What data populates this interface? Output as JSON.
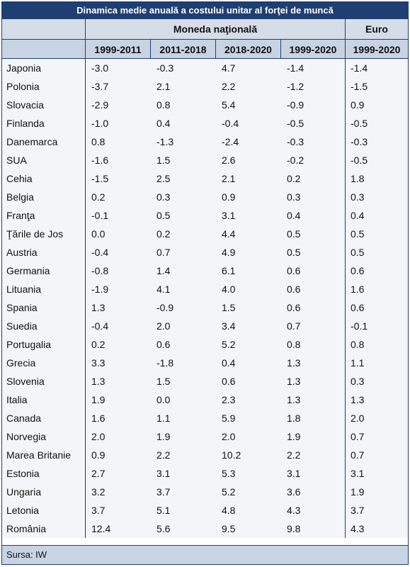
{
  "title": "Dinamica medie anuală a costului unitar al forţei de muncă",
  "header": {
    "group_national": "Moneda naţională",
    "group_euro": "Euro",
    "columns": [
      "1999-2011",
      "2011-2018",
      "2018-2020",
      "1999-2020",
      "1999-2020"
    ]
  },
  "rows": [
    {
      "country": "Japonia",
      "v": [
        "-3.0",
        "-0.3",
        "4.7",
        "-1.4",
        "-1.4"
      ]
    },
    {
      "country": "Polonia",
      "v": [
        "-3.7",
        "2.1",
        "2.2",
        "-1.2",
        "-1.5"
      ]
    },
    {
      "country": "Slovacia",
      "v": [
        "-2.9",
        "0.8",
        "5.4",
        "-0.9",
        "0.9"
      ]
    },
    {
      "country": "Finlanda",
      "v": [
        "-1.0",
        "0.4",
        "-0.4",
        "-0.5",
        "-0.5"
      ]
    },
    {
      "country": "Danemarca",
      "v": [
        "0.8",
        "-1.3",
        "-2.4",
        "-0.3",
        "-0.3"
      ]
    },
    {
      "country": "SUA",
      "v": [
        "-1.6",
        "1.5",
        "2.6",
        "-0.2",
        "-0.5"
      ]
    },
    {
      "country": "Cehia",
      "v": [
        "-1.5",
        "2.5",
        "2.1",
        "0.2",
        "1.8"
      ]
    },
    {
      "country": "Belgia",
      "v": [
        "0.2",
        "0.3",
        "0.9",
        "0.3",
        "0.3"
      ]
    },
    {
      "country": "Franţa",
      "v": [
        "-0.1",
        "0.5",
        "3.1",
        "0.4",
        "0.4"
      ]
    },
    {
      "country": "Ţările de Jos",
      "v": [
        "0.0",
        "0.2",
        "4.4",
        "0.5",
        "0.5"
      ]
    },
    {
      "country": "Austria",
      "v": [
        "-0.4",
        "0.7",
        "4.9",
        "0.5",
        "0.5"
      ]
    },
    {
      "country": "Germania",
      "v": [
        "-0.8",
        "1.4",
        "6.1",
        "0.6",
        "0.6"
      ]
    },
    {
      "country": "Lituania",
      "v": [
        "-1.9",
        "4.1",
        "4.0",
        "0.6",
        "1.6"
      ]
    },
    {
      "country": "Spania",
      "v": [
        "1.3",
        "-0.9",
        "1.5",
        "0.6",
        "0.6"
      ]
    },
    {
      "country": "Suedia",
      "v": [
        "-0.4",
        "2.0",
        "3.4",
        "0.7",
        "-0.1"
      ]
    },
    {
      "country": "Portugalia",
      "v": [
        "0.2",
        "0.6",
        "5.2",
        "0.8",
        "0.8"
      ]
    },
    {
      "country": "Grecia",
      "v": [
        "3.3",
        "-1.8",
        "0.4",
        "1.3",
        "1.1"
      ]
    },
    {
      "country": "Slovenia",
      "v": [
        "1.3",
        "1.5",
        "0.6",
        "1.3",
        "0.3"
      ]
    },
    {
      "country": "Italia",
      "v": [
        "1.9",
        "0.0",
        "2.3",
        "1.3",
        "1.3"
      ]
    },
    {
      "country": "Canada",
      "v": [
        "1.6",
        "1.1",
        "5.9",
        "1.8",
        "2.0"
      ]
    },
    {
      "country": "Norvegia",
      "v": [
        "2.0",
        "1.9",
        "2.0",
        "1.9",
        "0.7"
      ]
    },
    {
      "country": "Marea Britanie",
      "v": [
        "0.9",
        "2.2",
        "10.2",
        "2.2",
        "0.7"
      ]
    },
    {
      "country": "Estonia",
      "v": [
        "2.7",
        "3.1",
        "5.3",
        "3.1",
        "3.1"
      ]
    },
    {
      "country": "Ungaria",
      "v": [
        "3.2",
        "3.7",
        "5.2",
        "3.6",
        "1.9"
      ]
    },
    {
      "country": "Letonia",
      "v": [
        "3.7",
        "5.1",
        "4.8",
        "4.3",
        "3.7"
      ]
    },
    {
      "country": "România",
      "v": [
        "12.4",
        "5.6",
        "9.5",
        "9.8",
        "4.3"
      ]
    }
  ],
  "footer": "Sursa: IW"
}
